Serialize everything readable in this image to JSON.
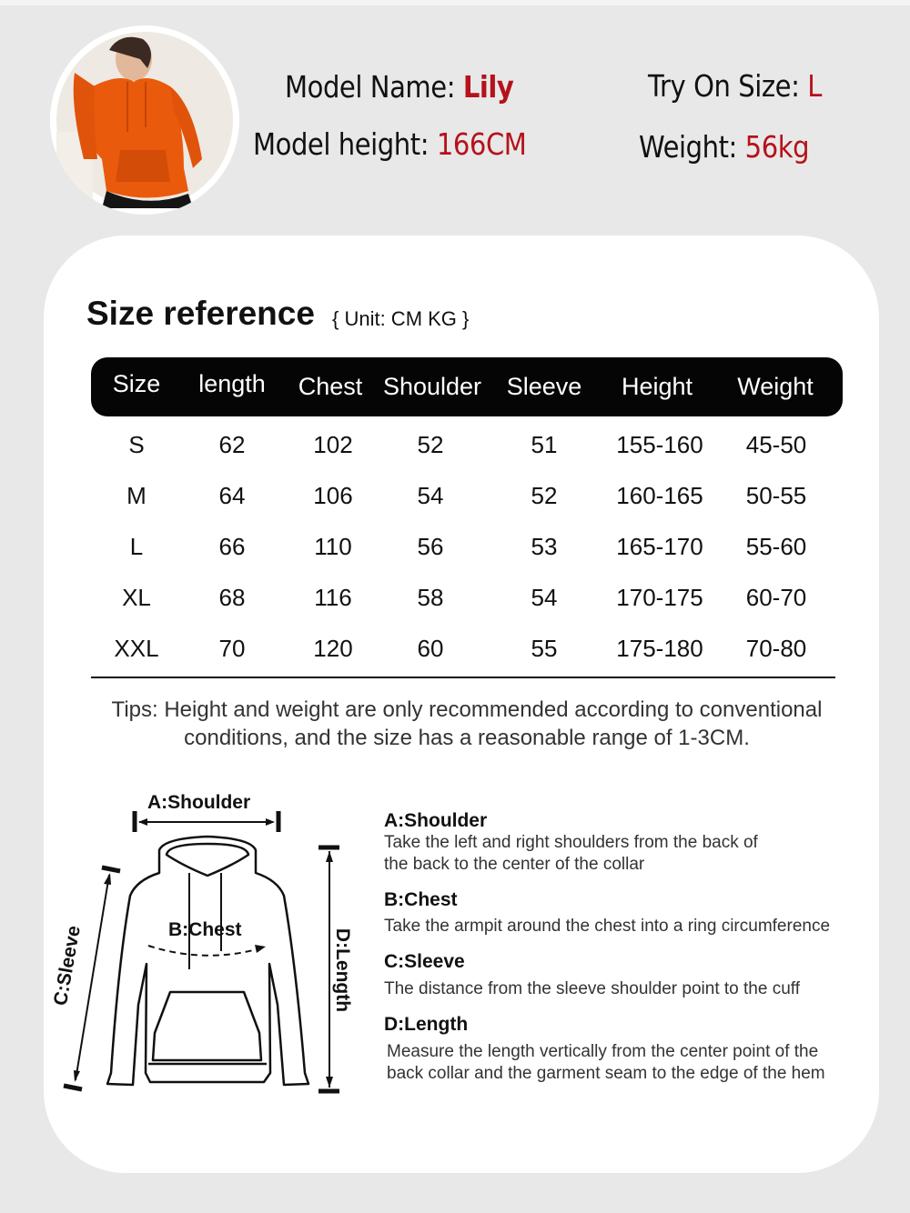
{
  "model": {
    "name_label": "Model Name: ",
    "name": "Lily",
    "height_label": "Model height: ",
    "height": "166CM",
    "size_label": "Try On Size: ",
    "size": "L",
    "weight_label": "Weight: ",
    "weight": "56kg",
    "accent_color": "#b5121b",
    "photo": "model-orange-hoodie-photo"
  },
  "size_reference": {
    "title": "Size reference",
    "unit": "{ Unit: CM KG }",
    "columns": [
      "Size",
      "length",
      "Chest",
      "Shoulder",
      "Sleeve",
      "Height",
      "Weight"
    ],
    "rows": [
      [
        "S",
        "62",
        "102",
        "52",
        "51",
        "155-160",
        "45-50"
      ],
      [
        "M",
        "64",
        "106",
        "54",
        "52",
        "160-165",
        "50-55"
      ],
      [
        "L",
        "66",
        "110",
        "56",
        "53",
        "165-170",
        "55-60"
      ],
      [
        "XL",
        "68",
        "116",
        "58",
        "54",
        "170-175",
        "60-70"
      ],
      [
        "XXL",
        "70",
        "120",
        "60",
        "55",
        "175-180",
        "70-80"
      ]
    ],
    "tips_line1": "Tips: Height and weight are only recommended according to conventional",
    "tips_line2": "conditions, and the size has a reasonable range of 1-3CM."
  },
  "diagram": {
    "shoulder": "A:Shoulder",
    "chest": "B:Chest",
    "sleeve": "C:Sleeve",
    "length": "D:Length"
  },
  "measurements": [
    {
      "title": "A:Shoulder",
      "lines": [
        "Take the left and right shoulders from the back of",
        "the back to the center of the collar"
      ]
    },
    {
      "title": "B:Chest",
      "lines": [
        "Take the armpit around the chest into a ring circumference"
      ]
    },
    {
      "title": "C:Sleeve",
      "lines": [
        "The distance from the sleeve shoulder point to the cuff"
      ]
    },
    {
      "title": "D:Length",
      "lines": [
        "Measure the length vertically from the center point of the",
        "back collar and the garment seam to the edge of the hem"
      ]
    }
  ]
}
